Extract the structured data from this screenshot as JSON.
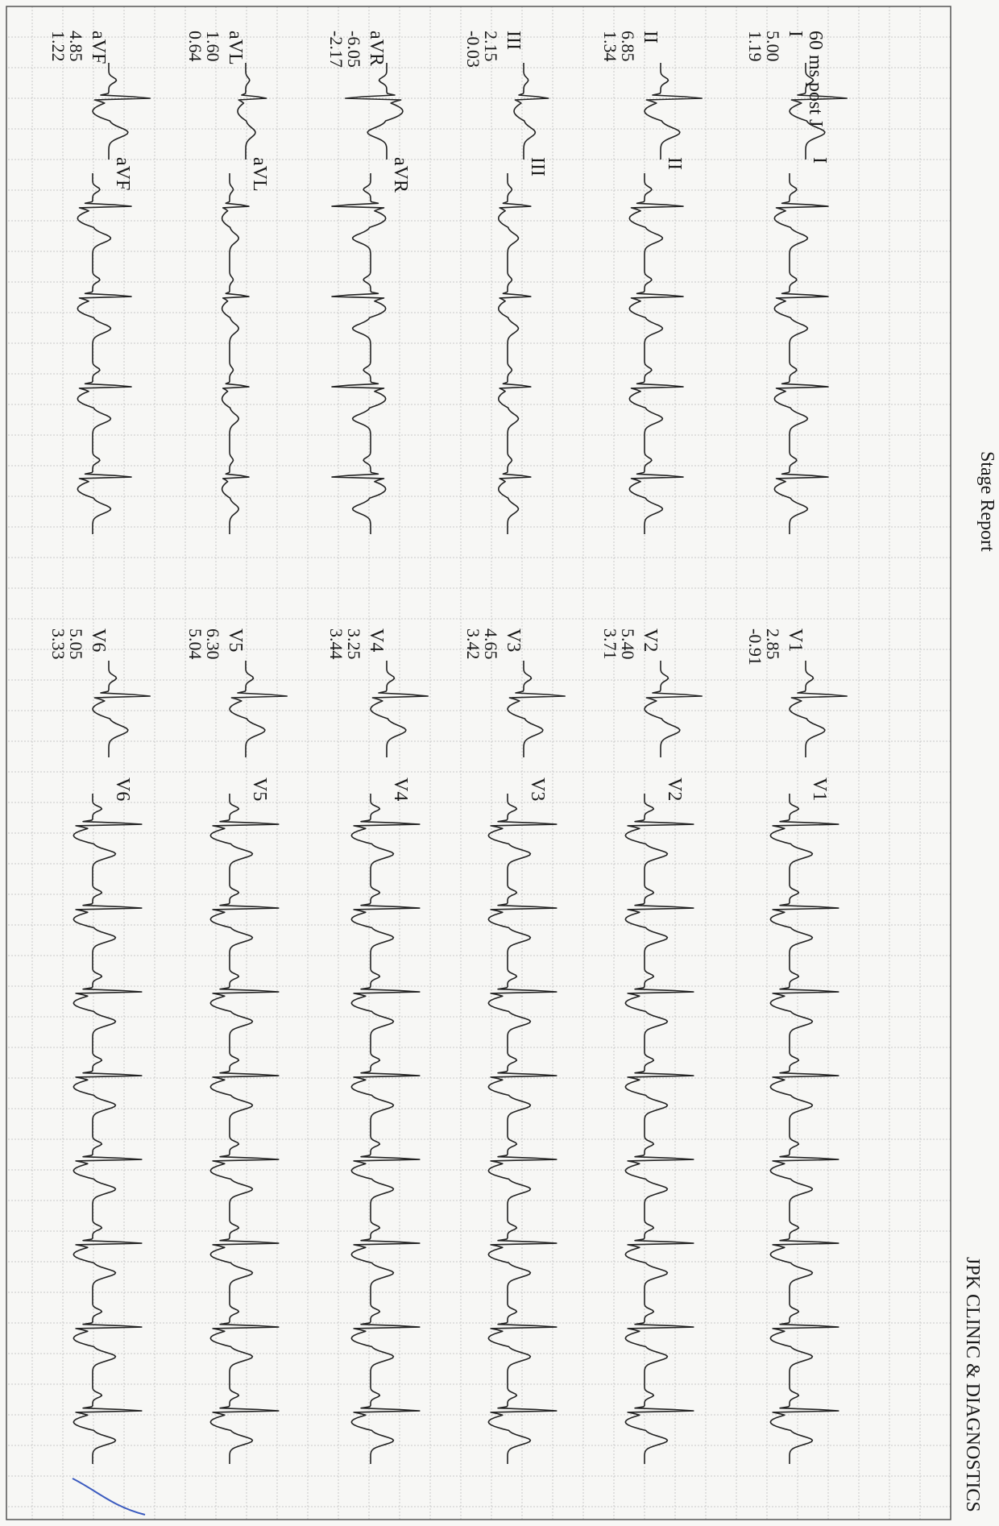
{
  "header": {
    "clinic": "JPK CLINIC & DIAGNOSTICS",
    "report": "Stage Report",
    "measure_point": "60 ms post J"
  },
  "leads": [
    {
      "name": "I",
      "value_1": "5.00",
      "value_2": "1.19"
    },
    {
      "name": "II",
      "value_1": "6.85",
      "value_2": "1.34"
    },
    {
      "name": "III",
      "value_1": "2.15",
      "value_2": "-0.03"
    },
    {
      "name": "aVR",
      "value_1": "-6.05",
      "value_2": "-2.17"
    },
    {
      "name": "aVL",
      "value_1": "1.60",
      "value_2": "0.64"
    },
    {
      "name": "aVF",
      "value_1": "4.85",
      "value_2": "1.22"
    },
    {
      "name": "V1",
      "value_1": "2.85",
      "value_2": "-0.91"
    },
    {
      "name": "V2",
      "value_1": "5.40",
      "value_2": "3.71"
    },
    {
      "name": "V3",
      "value_1": "4.65",
      "value_2": "3.42"
    },
    {
      "name": "V4",
      "value_1": "3.25",
      "value_2": "3.44"
    },
    {
      "name": "V5",
      "value_1": "6.30",
      "value_2": "5.04"
    },
    {
      "name": "V6",
      "value_1": "5.05",
      "value_2": "3.33"
    }
  ]
}
